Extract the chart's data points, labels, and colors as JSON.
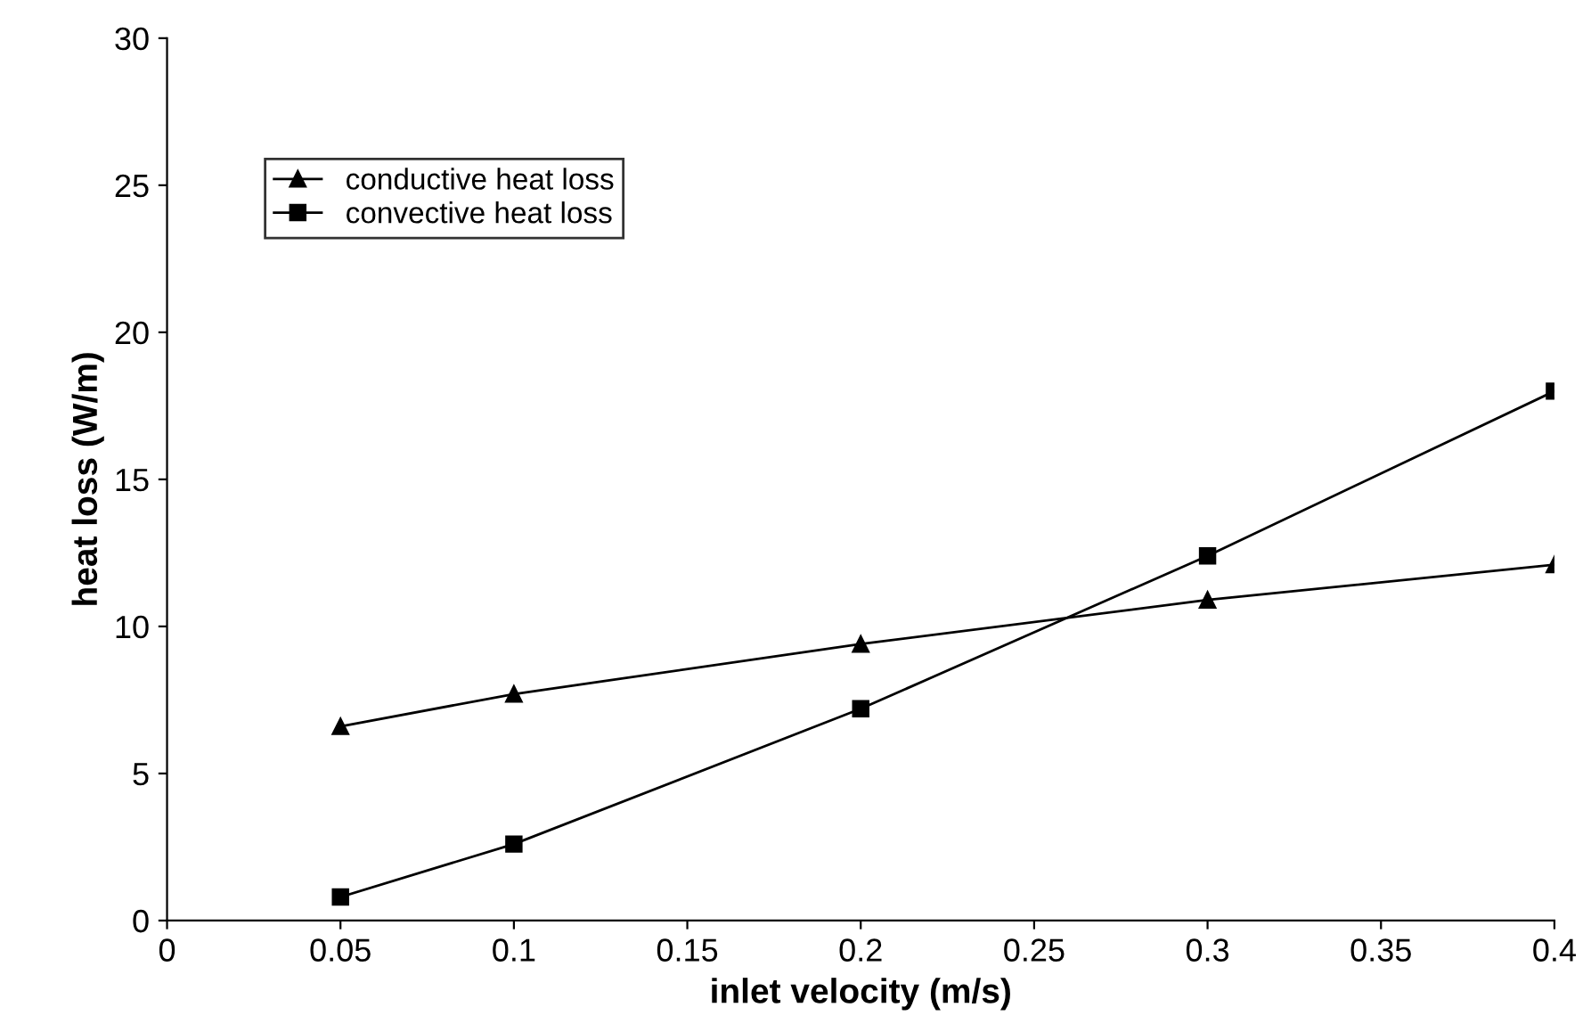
{
  "chart_data": {
    "type": "line",
    "xlabel": "inlet velocity (m/s)",
    "ylabel": "heat loss (W/m)",
    "x": [
      0.05,
      0.1,
      0.2,
      0.3,
      0.4
    ],
    "series": [
      {
        "name": "conductive heat loss",
        "color": "#000000",
        "marker": "triangle",
        "values": [
          6.6,
          7.7,
          9.4,
          10.9,
          12.1
        ]
      },
      {
        "name": "convective heat loss",
        "color": "#000000",
        "marker": "square",
        "values": [
          0.8,
          2.6,
          7.2,
          12.4,
          18.0
        ]
      }
    ],
    "xlim": [
      0,
      0.4
    ],
    "xticks": [
      0,
      0.05,
      0.1,
      0.15,
      0.2,
      0.25,
      0.3,
      0.35,
      0.4
    ],
    "ylim": [
      0,
      30
    ],
    "yticks": [
      0,
      5,
      10,
      15,
      20,
      25,
      30
    ],
    "grid": false,
    "legend": "top left",
    "line_style": "solid"
  }
}
